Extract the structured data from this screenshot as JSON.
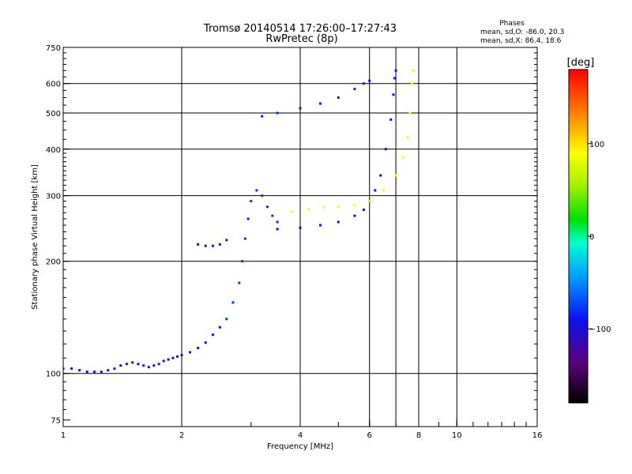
{
  "header": {
    "title": "Tromsø 20140514 17:26:00–17:27:43",
    "subtitle": "RwPretec (8p)"
  },
  "stats": {
    "heading": "Phases",
    "line_o": "mean, sd,O: -86.0, 20.3",
    "line_x": "mean, sd,X:  86.4, 18.6"
  },
  "colorbar": {
    "unit_label": "[deg]",
    "min": -180,
    "max": 180,
    "ticks": [
      {
        "value": 100,
        "label": "100"
      },
      {
        "value": 0,
        "label": "0"
      },
      {
        "value": -100,
        "label": "−100"
      }
    ]
  },
  "chart_data": {
    "type": "scatter",
    "xlabel": "Frequency [MHz]",
    "ylabel": "Stationary phase Virtual Height [km]",
    "xscale": "log",
    "yscale": "log",
    "xlim": [
      1,
      16
    ],
    "ylim": [
      72,
      750
    ],
    "x_ticks": [
      {
        "value": 1,
        "label": "1"
      },
      {
        "value": 2,
        "label": "2"
      },
      {
        "value": 4,
        "label": "4"
      },
      {
        "value": 6,
        "label": "6"
      },
      {
        "value": 8,
        "label": "8"
      },
      {
        "value": 10,
        "label": "10"
      },
      {
        "value": 16,
        "label": "16"
      }
    ],
    "x_gridlines": [
      2,
      4,
      6,
      7,
      8,
      10,
      16
    ],
    "y_ticks": [
      {
        "value": 75,
        "label": "75"
      },
      {
        "value": 100,
        "label": "100"
      },
      {
        "value": 200,
        "label": "200"
      },
      {
        "value": 300,
        "label": "300"
      },
      {
        "value": 400,
        "label": "400"
      },
      {
        "value": 500,
        "label": "500"
      },
      {
        "value": 600,
        "label": "600"
      },
      {
        "value": 750,
        "label": "750"
      }
    ],
    "y_gridlines": [
      100,
      200,
      300,
      400,
      500,
      600
    ],
    "grid": true,
    "color_scale": "phase [deg], -180 (black) to 180 (red)",
    "series": [
      {
        "id": "E_and_low_F_trace",
        "phase": -100,
        "points": [
          [
            1.0,
            103
          ],
          [
            1.05,
            103
          ],
          [
            1.1,
            102
          ],
          [
            1.15,
            101
          ],
          [
            1.2,
            101
          ],
          [
            1.25,
            101
          ],
          [
            1.3,
            102
          ],
          [
            1.35,
            103
          ],
          [
            1.4,
            105
          ],
          [
            1.45,
            106
          ],
          [
            1.5,
            107
          ],
          [
            1.55,
            106
          ],
          [
            1.6,
            105
          ],
          [
            1.65,
            104
          ],
          [
            1.7,
            105
          ],
          [
            1.75,
            106
          ],
          [
            1.8,
            108
          ],
          [
            1.85,
            109
          ],
          [
            1.9,
            110
          ],
          [
            1.95,
            111
          ],
          [
            2.0,
            112
          ],
          [
            2.1,
            114
          ],
          [
            2.2,
            117
          ],
          [
            2.3,
            121
          ],
          [
            2.4,
            127
          ],
          [
            2.5,
            133
          ]
        ]
      },
      {
        "id": "F1_cusp_cluster",
        "phase": -80,
        "points": [
          [
            2.6,
            140
          ],
          [
            2.7,
            155
          ],
          [
            2.8,
            175
          ],
          [
            2.85,
            200
          ],
          [
            2.9,
            230
          ],
          [
            2.95,
            260
          ],
          [
            3.0,
            290
          ],
          [
            3.1,
            310
          ],
          [
            3.2,
            300
          ],
          [
            3.3,
            280
          ],
          [
            3.4,
            265
          ],
          [
            3.5,
            255
          ]
        ]
      },
      {
        "id": "F2_o_trace",
        "phase": -92,
        "points": [
          [
            3.5,
            244
          ],
          [
            4.0,
            246
          ],
          [
            4.5,
            250
          ],
          [
            5.0,
            255
          ],
          [
            5.5,
            265
          ],
          [
            5.8,
            275
          ],
          [
            6.0,
            290
          ],
          [
            6.2,
            310
          ],
          [
            6.4,
            340
          ],
          [
            6.6,
            400
          ],
          [
            6.8,
            480
          ],
          [
            6.9,
            560
          ],
          [
            6.95,
            620
          ],
          [
            7.0,
            650
          ]
        ]
      },
      {
        "id": "F2_x_trace",
        "phase": 90,
        "points": [
          [
            3.8,
            272
          ],
          [
            4.2,
            276
          ],
          [
            4.6,
            279
          ],
          [
            5.0,
            280
          ],
          [
            5.5,
            283
          ],
          [
            6.0,
            290
          ],
          [
            6.5,
            310
          ],
          [
            7.0,
            340
          ],
          [
            7.3,
            380
          ],
          [
            7.5,
            430
          ],
          [
            7.6,
            500
          ],
          [
            7.7,
            600
          ],
          [
            7.75,
            650
          ]
        ]
      },
      {
        "id": "multihop_echo",
        "phase": -85,
        "points": [
          [
            3.2,
            490
          ],
          [
            3.5,
            500
          ],
          [
            4.0,
            515
          ],
          [
            4.5,
            530
          ],
          [
            5.0,
            550
          ],
          [
            5.5,
            580
          ],
          [
            5.8,
            600
          ],
          [
            6.0,
            610
          ]
        ]
      },
      {
        "id": "short_low_branch",
        "phase": -110,
        "points": [
          [
            2.2,
            222
          ],
          [
            2.3,
            220
          ],
          [
            2.4,
            220
          ],
          [
            2.5,
            222
          ],
          [
            2.6,
            228
          ]
        ]
      }
    ]
  }
}
